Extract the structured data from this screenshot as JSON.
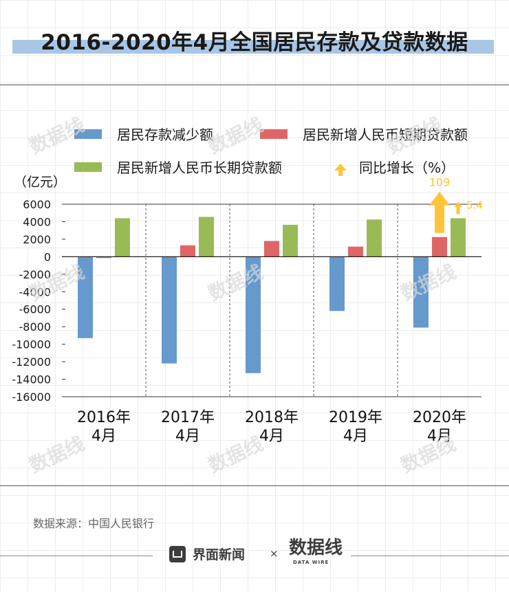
{
  "title": "2016-2020年4月全国居民存款及贷款数据",
  "legend": {
    "deposit": "居民存款减少额",
    "short_loan": "居民新增人民币短期贷款额",
    "long_loan": "居民新增人民币长期贷款额",
    "growth": "同比增长（%）"
  },
  "unit": "（亿元）",
  "source": "数据来源：中国人民银行",
  "footer": {
    "brand": "界面新闻",
    "times": "×",
    "partner": "数据线",
    "partner_sub": "DATA WIRE"
  },
  "colors": {
    "deposit": "#6699cc",
    "short_loan": "#e06666",
    "long_loan": "#99bb55",
    "arrow": "#ffc53a"
  },
  "chart_data": {
    "type": "bar",
    "categories": [
      "2016年\n4月",
      "2017年\n4月",
      "2018年\n4月",
      "2019年\n4月",
      "2020年\n4月"
    ],
    "series": [
      {
        "name": "居民存款减少额",
        "values": [
          -9300,
          -12200,
          -13300,
          -6200,
          -8100
        ]
      },
      {
        "name": "居民新增人民币短期贷款额",
        "values": [
          -150,
          1300,
          1800,
          1150,
          2250
        ]
      },
      {
        "name": "居民新增人民币长期贷款额",
        "values": [
          4400,
          4550,
          3650,
          4250,
          4400
        ]
      }
    ],
    "ylim": [
      -16000,
      6000
    ],
    "yticks": [
      6000,
      4000,
      2000,
      0,
      -2000,
      -4000,
      -6000,
      -8000,
      -10000,
      -12000,
      -14000,
      -16000
    ],
    "annotations": [
      {
        "series": "居民新增人民币短期贷款额",
        "category": "2020年\n4月",
        "text": "109"
      },
      {
        "series": "居民新增人民币长期贷款额",
        "category": "2020年\n4月",
        "text": "5.4"
      }
    ]
  }
}
